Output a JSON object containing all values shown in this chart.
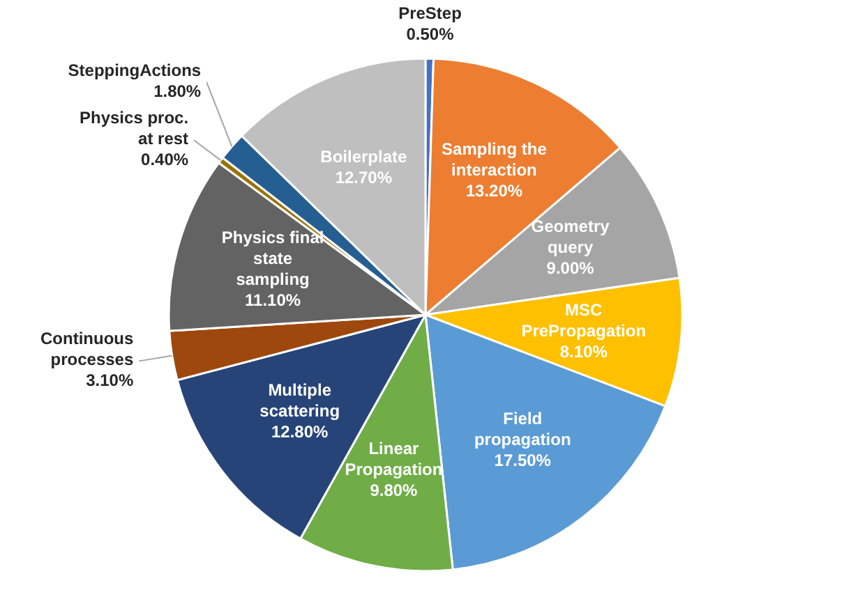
{
  "chart_data": {
    "type": "pie",
    "categories": [
      "PreStep",
      "Sampling the interaction",
      "Geometry query",
      "MSC PrePropagation",
      "Field propagation",
      "Linear Propagation",
      "Multiple scattering",
      "Continuous processes",
      "Physics final state sampling",
      "Physics proc. at rest",
      "SteppingActions",
      "Boilerplate"
    ],
    "values": [
      0.5,
      13.2,
      9.0,
      8.1,
      17.5,
      9.8,
      12.8,
      3.1,
      11.1,
      0.4,
      1.8,
      12.7
    ],
    "value_labels": [
      "0.50%",
      "13.20%",
      "9.00%",
      "8.10%",
      "17.50%",
      "9.80%",
      "12.80%",
      "3.10%",
      "11.10%",
      "0.40%",
      "1.80%",
      "12.70%"
    ],
    "colors": [
      "#4472c4",
      "#ed7d31",
      "#a5a5a5",
      "#ffc000",
      "#5b9bd5",
      "#70ad47",
      "#264478",
      "#9e480e",
      "#636363",
      "#997300",
      "#255e91",
      "#bfbfbf"
    ]
  }
}
